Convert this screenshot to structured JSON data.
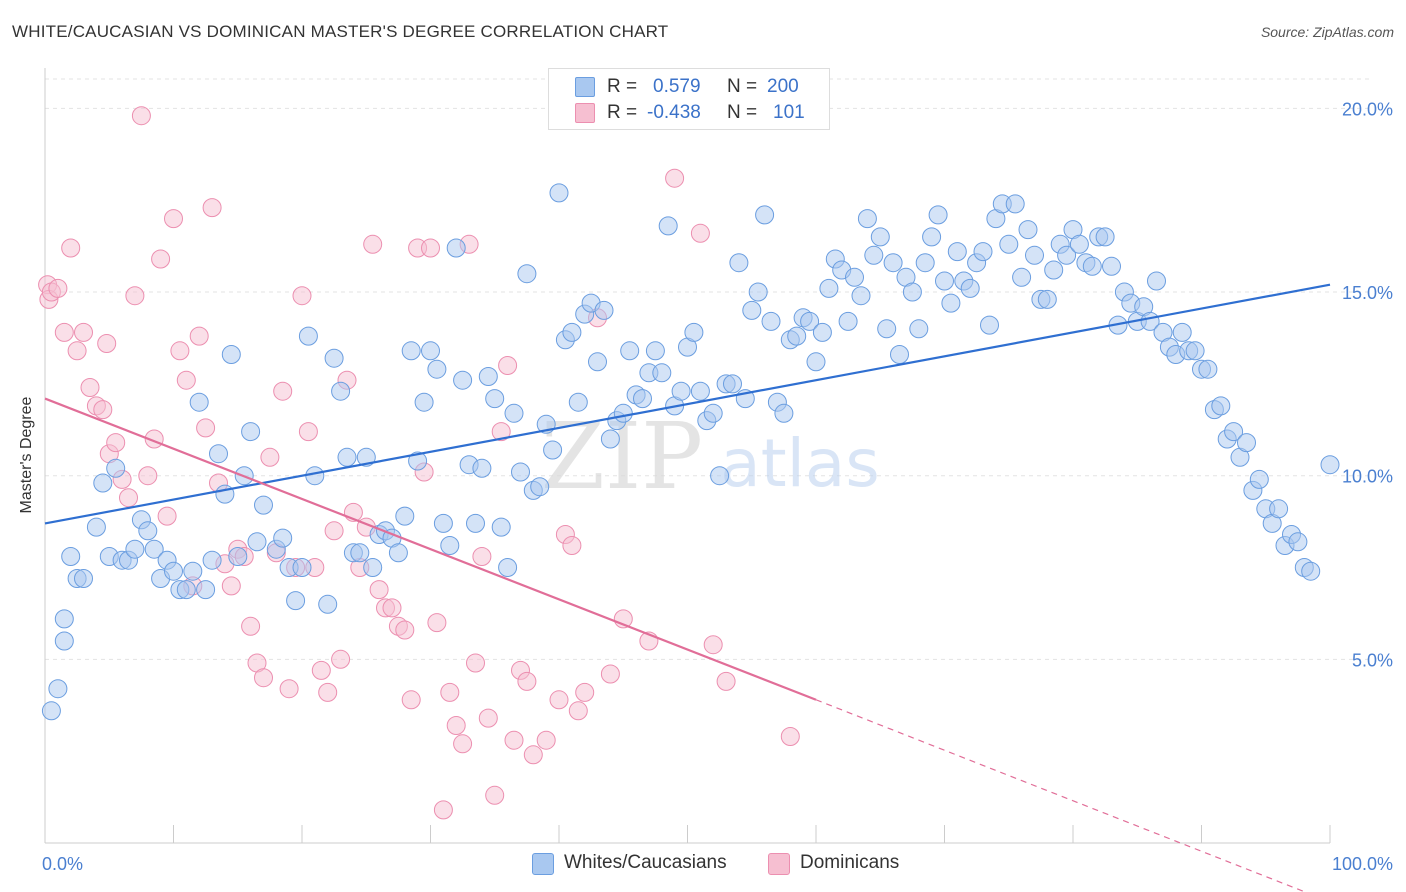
{
  "title": "WHITE/CAUCASIAN VS DOMINICAN MASTER'S DEGREE CORRELATION CHART",
  "source": "Source: ZipAtlas.com",
  "watermark": {
    "zip": "ZIP",
    "atlas": "atlas"
  },
  "colors": {
    "blue_fill": "#a9c8f0",
    "blue_stroke": "#6b9ee0",
    "blue_line": "#2f6fd1",
    "pink_fill": "#f6bfd1",
    "pink_stroke": "#ec8fb0",
    "pink_line": "#e16e98",
    "tick_label": "#4a7fd0",
    "grid": "#e3e3e3"
  },
  "stats_legend": [
    {
      "r_label": "R =",
      "r_value": "0.579",
      "n_label": "N =",
      "n_value": "200",
      "color": "blue"
    },
    {
      "r_label": "R =",
      "r_value": "-0.438",
      "n_label": "N =",
      "n_value": "101",
      "color": "pink"
    }
  ],
  "chart_data": {
    "type": "scatter",
    "title": "WHITE/CAUCASIAN VS DOMINICAN MASTER'S DEGREE CORRELATION CHART",
    "xlabel": "",
    "ylabel": "Master's Degree",
    "xlim": [
      0,
      100
    ],
    "ylim": [
      0,
      20.8
    ],
    "x_tick_labels": [
      {
        "value": 0,
        "label": "0.0%"
      },
      {
        "value": 100,
        "label": "100.0%"
      }
    ],
    "y_tick_labels": [
      {
        "value": 5,
        "label": "5.0%"
      },
      {
        "value": 10,
        "label": "10.0%"
      },
      {
        "value": 15,
        "label": "15.0%"
      },
      {
        "value": 20,
        "label": "20.0%"
      }
    ],
    "grid": "horizontal dashed",
    "legend": "bottom-center",
    "series": [
      {
        "name": "Whites/Caucasians",
        "color": "blue",
        "trend": {
          "x": [
            0,
            100
          ],
          "y": [
            8.7,
            15.2
          ]
        },
        "points": [
          [
            0.5,
            3.6
          ],
          [
            1,
            4.2
          ],
          [
            1.5,
            5.5
          ],
          [
            1.5,
            6.1
          ],
          [
            2,
            7.8
          ],
          [
            2.5,
            7.2
          ],
          [
            3,
            7.2
          ],
          [
            4,
            8.6
          ],
          [
            4.5,
            9.8
          ],
          [
            5,
            7.8
          ],
          [
            5.5,
            10.2
          ],
          [
            6,
            7.7
          ],
          [
            6.5,
            7.7
          ],
          [
            7,
            8.0
          ],
          [
            7.5,
            8.8
          ],
          [
            8,
            8.5
          ],
          [
            8.5,
            8.0
          ],
          [
            9,
            7.2
          ],
          [
            9.5,
            7.7
          ],
          [
            10,
            7.4
          ],
          [
            10.5,
            6.9
          ],
          [
            11,
            6.9
          ],
          [
            11.5,
            7.4
          ],
          [
            12,
            12.0
          ],
          [
            12.5,
            6.9
          ],
          [
            13,
            7.7
          ],
          [
            13.5,
            10.6
          ],
          [
            14,
            9.5
          ],
          [
            14.5,
            13.3
          ],
          [
            15,
            7.8
          ],
          [
            15.5,
            10.0
          ],
          [
            16,
            11.2
          ],
          [
            16.5,
            8.2
          ],
          [
            17,
            9.2
          ],
          [
            18,
            8.0
          ],
          [
            18.5,
            8.3
          ],
          [
            19,
            7.5
          ],
          [
            19.5,
            6.6
          ],
          [
            20,
            7.5
          ],
          [
            20.5,
            13.8
          ],
          [
            21,
            10.0
          ],
          [
            22,
            6.5
          ],
          [
            22.5,
            13.2
          ],
          [
            23,
            12.3
          ],
          [
            23.5,
            10.5
          ],
          [
            24,
            7.9
          ],
          [
            24.5,
            7.9
          ],
          [
            25,
            10.5
          ],
          [
            25.5,
            7.5
          ],
          [
            26,
            8.4
          ],
          [
            26.5,
            8.5
          ],
          [
            27,
            8.3
          ],
          [
            27.5,
            7.9
          ],
          [
            28,
            8.9
          ],
          [
            28.5,
            13.4
          ],
          [
            29,
            10.4
          ],
          [
            29.5,
            12.0
          ],
          [
            30,
            13.4
          ],
          [
            30.5,
            12.9
          ],
          [
            31,
            8.7
          ],
          [
            31.5,
            8.1
          ],
          [
            32,
            16.2
          ],
          [
            32.5,
            12.6
          ],
          [
            33,
            10.3
          ],
          [
            33.5,
            8.7
          ],
          [
            34,
            10.2
          ],
          [
            34.5,
            12.7
          ],
          [
            35,
            12.1
          ],
          [
            35.5,
            8.6
          ],
          [
            36,
            7.5
          ],
          [
            36.5,
            11.7
          ],
          [
            37,
            10.1
          ],
          [
            37.5,
            15.5
          ],
          [
            38,
            9.6
          ],
          [
            38.5,
            9.7
          ],
          [
            39,
            11.4
          ],
          [
            39.5,
            10.7
          ],
          [
            40,
            17.7
          ],
          [
            40.5,
            13.7
          ],
          [
            41,
            13.9
          ],
          [
            41.5,
            12.0
          ],
          [
            42,
            14.4
          ],
          [
            42.5,
            14.7
          ],
          [
            43,
            13.1
          ],
          [
            43.5,
            14.5
          ],
          [
            44,
            11.0
          ],
          [
            44.5,
            11.5
          ],
          [
            45,
            11.7
          ],
          [
            45.5,
            13.4
          ],
          [
            46,
            12.2
          ],
          [
            46.5,
            12.1
          ],
          [
            47,
            12.8
          ],
          [
            47.5,
            13.4
          ],
          [
            48,
            12.8
          ],
          [
            48.5,
            16.8
          ],
          [
            49,
            11.9
          ],
          [
            49.5,
            12.3
          ],
          [
            50,
            13.5
          ],
          [
            50.5,
            13.9
          ],
          [
            51,
            12.3
          ],
          [
            51.5,
            11.5
          ],
          [
            52,
            11.7
          ],
          [
            52.5,
            10.0
          ],
          [
            53,
            12.5
          ],
          [
            53.5,
            12.5
          ],
          [
            54,
            15.8
          ],
          [
            54.5,
            12.1
          ],
          [
            55,
            14.5
          ],
          [
            55.5,
            15.0
          ],
          [
            56,
            17.1
          ],
          [
            56.5,
            14.2
          ],
          [
            57,
            12.0
          ],
          [
            57.5,
            11.7
          ],
          [
            58,
            13.7
          ],
          [
            58.5,
            13.8
          ],
          [
            59,
            14.3
          ],
          [
            59.5,
            14.2
          ],
          [
            60,
            13.1
          ],
          [
            60.5,
            13.9
          ],
          [
            61,
            15.1
          ],
          [
            61.5,
            15.9
          ],
          [
            62,
            15.6
          ],
          [
            62.5,
            14.2
          ],
          [
            63,
            15.4
          ],
          [
            63.5,
            14.9
          ],
          [
            64,
            17.0
          ],
          [
            64.5,
            16.0
          ],
          [
            65,
            16.5
          ],
          [
            65.5,
            14.0
          ],
          [
            66,
            15.8
          ],
          [
            66.5,
            13.3
          ],
          [
            67,
            15.4
          ],
          [
            67.5,
            15.0
          ],
          [
            68,
            14.0
          ],
          [
            68.5,
            15.8
          ],
          [
            69,
            16.5
          ],
          [
            69.5,
            17.1
          ],
          [
            70,
            15.3
          ],
          [
            70.5,
            14.7
          ],
          [
            71,
            16.1
          ],
          [
            71.5,
            15.3
          ],
          [
            72,
            15.1
          ],
          [
            72.5,
            15.8
          ],
          [
            73,
            16.1
          ],
          [
            73.5,
            14.1
          ],
          [
            74,
            17.0
          ],
          [
            74.5,
            17.4
          ],
          [
            75,
            16.3
          ],
          [
            75.5,
            17.4
          ],
          [
            76,
            15.4
          ],
          [
            76.5,
            16.7
          ],
          [
            77,
            16.0
          ],
          [
            77.5,
            14.8
          ],
          [
            78,
            14.8
          ],
          [
            78.5,
            15.6
          ],
          [
            79,
            16.3
          ],
          [
            79.5,
            16.0
          ],
          [
            80,
            16.7
          ],
          [
            80.5,
            16.3
          ],
          [
            81,
            15.8
          ],
          [
            81.5,
            15.7
          ],
          [
            82,
            16.5
          ],
          [
            82.5,
            16.5
          ],
          [
            83,
            15.7
          ],
          [
            83.5,
            14.1
          ],
          [
            84,
            15.0
          ],
          [
            84.5,
            14.7
          ],
          [
            85,
            14.2
          ],
          [
            85.5,
            14.6
          ],
          [
            86,
            14.2
          ],
          [
            86.5,
            15.3
          ],
          [
            87,
            13.9
          ],
          [
            87.5,
            13.5
          ],
          [
            88,
            13.3
          ],
          [
            88.5,
            13.9
          ],
          [
            89,
            13.4
          ],
          [
            89.5,
            13.4
          ],
          [
            90,
            12.9
          ],
          [
            90.5,
            12.9
          ],
          [
            91,
            11.8
          ],
          [
            91.5,
            11.9
          ],
          [
            92,
            11.0
          ],
          [
            92.5,
            11.2
          ],
          [
            93,
            10.5
          ],
          [
            93.5,
            10.9
          ],
          [
            94,
            9.6
          ],
          [
            94.5,
            9.9
          ],
          [
            95,
            9.1
          ],
          [
            95.5,
            8.7
          ],
          [
            96,
            9.1
          ],
          [
            96.5,
            8.1
          ],
          [
            97,
            8.4
          ],
          [
            97.5,
            8.2
          ],
          [
            98,
            7.5
          ],
          [
            98.5,
            7.4
          ],
          [
            100,
            10.3
          ]
        ]
      },
      {
        "name": "Dominicans",
        "color": "pink",
        "trend": {
          "x": [
            0,
            60
          ],
          "y": [
            12.1,
            3.9
          ]
        },
        "trend_dashed": {
          "x": [
            60,
            100
          ],
          "y": [
            3.9,
            -1.6
          ]
        },
        "points": [
          [
            0.2,
            15.2
          ],
          [
            0.3,
            14.8
          ],
          [
            0.5,
            15.0
          ],
          [
            1,
            15.1
          ],
          [
            1.5,
            13.9
          ],
          [
            2,
            16.2
          ],
          [
            2.5,
            13.4
          ],
          [
            3,
            13.9
          ],
          [
            3.5,
            12.4
          ],
          [
            4,
            11.9
          ],
          [
            4.5,
            11.8
          ],
          [
            4.8,
            13.6
          ],
          [
            5,
            10.6
          ],
          [
            5.5,
            10.9
          ],
          [
            6,
            9.9
          ],
          [
            6.5,
            9.4
          ],
          [
            7,
            14.9
          ],
          [
            7.5,
            19.8
          ],
          [
            8,
            10.0
          ],
          [
            8.5,
            11.0
          ],
          [
            9,
            15.9
          ],
          [
            9.5,
            8.9
          ],
          [
            10,
            17.0
          ],
          [
            10.5,
            13.4
          ],
          [
            11,
            12.6
          ],
          [
            11.5,
            7.0
          ],
          [
            12,
            13.8
          ],
          [
            12.5,
            11.3
          ],
          [
            13,
            17.3
          ],
          [
            13.5,
            9.8
          ],
          [
            14,
            7.6
          ],
          [
            14.5,
            7.0
          ],
          [
            15,
            8.0
          ],
          [
            15.5,
            7.8
          ],
          [
            16,
            5.9
          ],
          [
            16.5,
            4.9
          ],
          [
            17,
            4.5
          ],
          [
            17.5,
            10.5
          ],
          [
            18,
            7.9
          ],
          [
            18.5,
            12.3
          ],
          [
            19,
            4.2
          ],
          [
            19.5,
            7.5
          ],
          [
            20,
            14.9
          ],
          [
            20.5,
            11.2
          ],
          [
            21,
            7.5
          ],
          [
            21.5,
            4.7
          ],
          [
            22,
            4.1
          ],
          [
            22.5,
            8.5
          ],
          [
            23,
            5.0
          ],
          [
            23.5,
            12.6
          ],
          [
            24,
            9.0
          ],
          [
            24.5,
            7.5
          ],
          [
            25,
            8.6
          ],
          [
            25.5,
            16.3
          ],
          [
            26,
            6.9
          ],
          [
            26.5,
            6.4
          ],
          [
            27,
            6.4
          ],
          [
            27.5,
            5.9
          ],
          [
            28,
            5.8
          ],
          [
            28.5,
            3.9
          ],
          [
            29,
            16.2
          ],
          [
            29.5,
            10.1
          ],
          [
            30,
            16.2
          ],
          [
            30.5,
            6.0
          ],
          [
            31,
            0.9
          ],
          [
            31.5,
            4.1
          ],
          [
            32,
            3.2
          ],
          [
            32.5,
            2.7
          ],
          [
            33,
            16.3
          ],
          [
            33.5,
            4.9
          ],
          [
            34,
            7.8
          ],
          [
            34.5,
            3.4
          ],
          [
            35,
            1.3
          ],
          [
            35.5,
            11.2
          ],
          [
            36,
            13.0
          ],
          [
            36.5,
            2.8
          ],
          [
            37,
            4.7
          ],
          [
            37.5,
            4.4
          ],
          [
            38,
            2.4
          ],
          [
            39,
            2.8
          ],
          [
            40,
            3.9
          ],
          [
            40.5,
            8.4
          ],
          [
            41,
            8.1
          ],
          [
            41.5,
            3.6
          ],
          [
            42,
            4.1
          ],
          [
            43,
            14.3
          ],
          [
            44,
            4.6
          ],
          [
            45,
            6.1
          ],
          [
            47,
            5.5
          ],
          [
            49,
            18.1
          ],
          [
            51,
            16.6
          ],
          [
            52,
            5.4
          ],
          [
            53,
            4.4
          ],
          [
            58,
            2.9
          ]
        ]
      }
    ]
  },
  "bottom_legend": [
    {
      "label": "Whites/Caucasians",
      "color": "blue"
    },
    {
      "label": "Dominicans",
      "color": "pink"
    }
  ]
}
